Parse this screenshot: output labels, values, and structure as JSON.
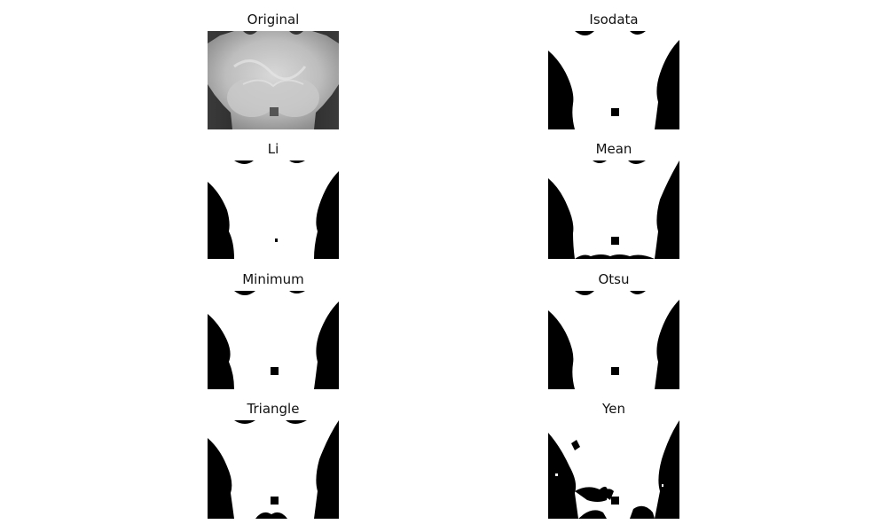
{
  "panels": [
    {
      "title": "Original"
    },
    {
      "title": "Isodata"
    },
    {
      "title": "Li"
    },
    {
      "title": "Mean"
    },
    {
      "title": "Minimum"
    },
    {
      "title": "Otsu"
    },
    {
      "title": "Triangle"
    },
    {
      "title": "Yen"
    }
  ]
}
